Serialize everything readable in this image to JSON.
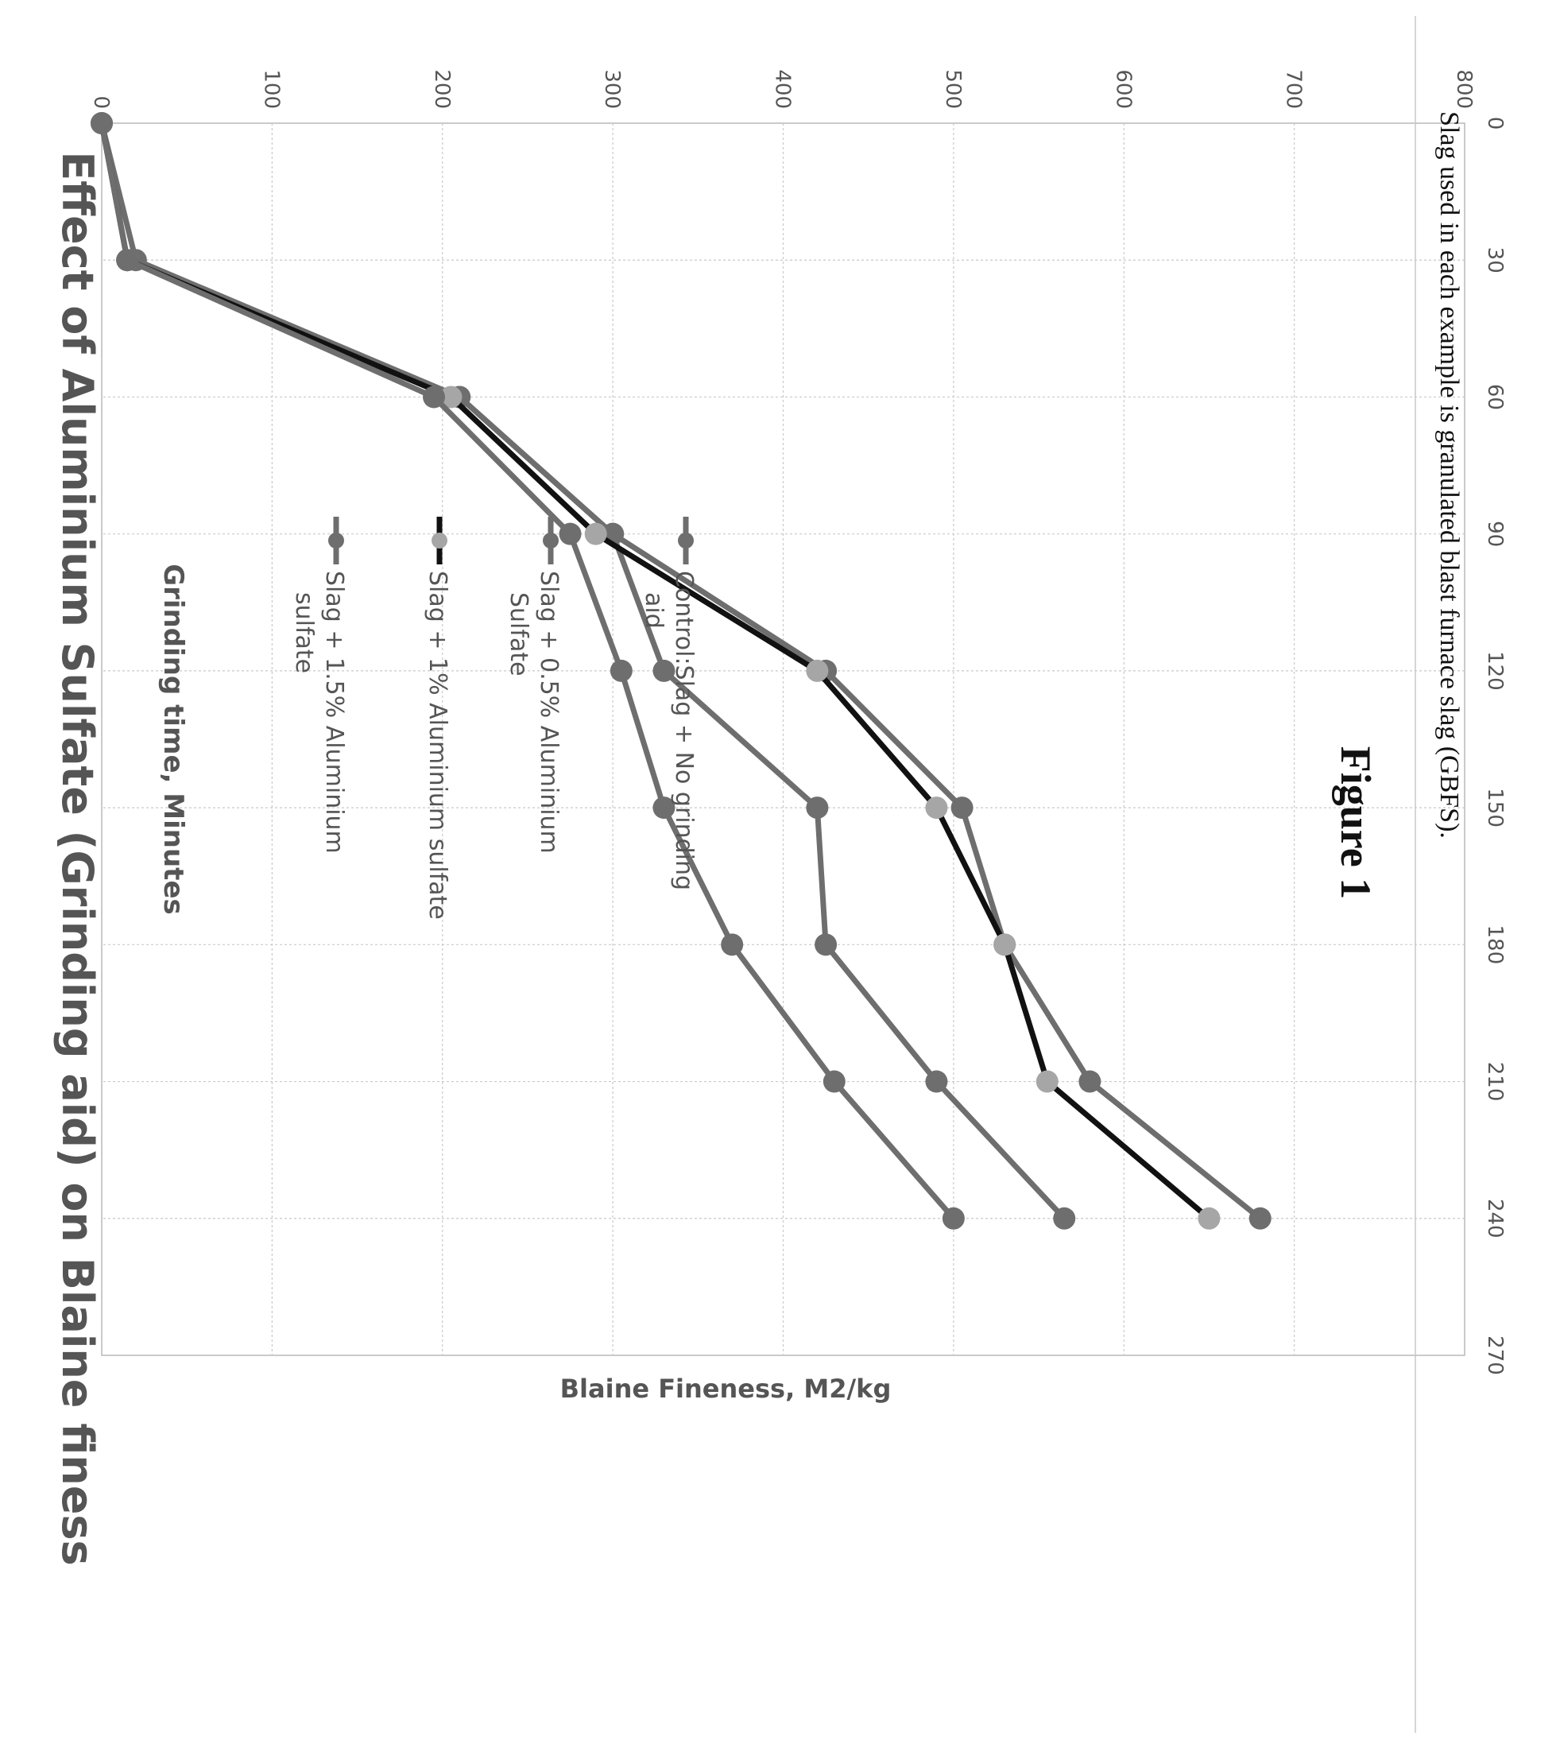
{
  "chart_data": {
    "type": "line",
    "title": "Effect of Aluminium Sulfate (Grinding aid) on Blaine finess",
    "xlabel": "Grinding time, Minutes",
    "ylabel": "Blaine Fineness, M2/kg",
    "xlim": [
      0,
      270
    ],
    "ylim": [
      0,
      800
    ],
    "xticks": [
      0,
      30,
      60,
      90,
      120,
      150,
      180,
      210,
      240,
      270
    ],
    "yticks": [
      0,
      100,
      200,
      300,
      400,
      500,
      600,
      700,
      800
    ],
    "grid": true,
    "legend_position": "right",
    "orientation": "rotated 90° clockwise on page",
    "x": [
      0,
      30,
      60,
      90,
      120,
      150,
      180,
      210,
      240
    ],
    "series": [
      {
        "name": "Control:Slag + No grinding aid",
        "values": [
          0,
          20,
          210,
          300,
          425,
          505,
          530,
          580,
          680
        ],
        "color": "#6e6e6e",
        "marker_color": "#6e6e6e"
      },
      {
        "name": "Slag + 0.5% Aluminium Sulfate",
        "values": [
          0,
          15,
          210,
          300,
          330,
          420,
          425,
          490,
          565
        ],
        "color": "#6e6e6e",
        "marker_color": "#6e6e6e"
      },
      {
        "name": "Slag + 1% Aluminium sulfate",
        "values": [
          0,
          15,
          205,
          290,
          420,
          490,
          530,
          555,
          650
        ],
        "color": "#111111",
        "marker_color": "#a6a6a6"
      },
      {
        "name": "Slag + 1.5% Aluminium sulfate",
        "values": [
          0,
          15,
          195,
          275,
          305,
          330,
          370,
          430,
          500
        ],
        "color": "#6e6e6e",
        "marker_color": "#6e6e6e"
      }
    ]
  },
  "caption": {
    "note": "Slag used in each example is granulated blast furnace slag (GBFS).",
    "figure_label": "Figure 1"
  }
}
